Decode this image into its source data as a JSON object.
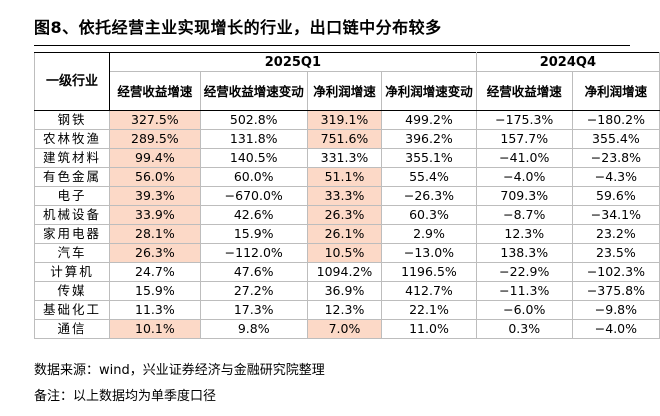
{
  "title": "图8、依托经营主业实现增长的行业，出口链中分布较多",
  "table": {
    "groups": [
      "2025Q1",
      "2024Q4"
    ],
    "row_header": "一级行业",
    "columns": [
      "经营收益增速",
      "经营收益增速变动",
      "净利润增速",
      "净利润增速变动",
      "经营收益增速",
      "净利润增速"
    ],
    "rows": [
      {
        "name": "钢铁",
        "values": [
          "327.5%",
          "502.8%",
          "319.1%",
          "499.2%",
          "−175.3%",
          "−180.2%"
        ],
        "highlight": [
          true,
          false,
          true,
          false,
          false,
          false
        ]
      },
      {
        "name": "农林牧渔",
        "values": [
          "289.5%",
          "131.8%",
          "751.6%",
          "396.2%",
          "157.7%",
          "355.4%"
        ],
        "highlight": [
          true,
          false,
          true,
          false,
          false,
          false
        ]
      },
      {
        "name": "建筑材料",
        "values": [
          "99.4%",
          "140.5%",
          "331.3%",
          "355.1%",
          "−41.0%",
          "−23.8%"
        ],
        "highlight": [
          true,
          false,
          false,
          false,
          false,
          false
        ]
      },
      {
        "name": "有色金属",
        "values": [
          "56.0%",
          "60.0%",
          "51.1%",
          "55.4%",
          "−4.0%",
          "−4.3%"
        ],
        "highlight": [
          true,
          false,
          true,
          false,
          false,
          false
        ]
      },
      {
        "name": "电子",
        "values": [
          "39.3%",
          "−670.0%",
          "33.3%",
          "−26.3%",
          "709.3%",
          "59.6%"
        ],
        "highlight": [
          true,
          false,
          true,
          false,
          false,
          false
        ]
      },
      {
        "name": "机械设备",
        "values": [
          "33.9%",
          "42.6%",
          "26.3%",
          "60.3%",
          "−8.7%",
          "−34.1%"
        ],
        "highlight": [
          true,
          false,
          true,
          false,
          false,
          false
        ]
      },
      {
        "name": "家用电器",
        "values": [
          "28.1%",
          "15.9%",
          "26.1%",
          "2.9%",
          "12.3%",
          "23.2%"
        ],
        "highlight": [
          true,
          false,
          true,
          false,
          false,
          false
        ]
      },
      {
        "name": "汽车",
        "values": [
          "26.3%",
          "−112.0%",
          "10.5%",
          "−13.0%",
          "138.3%",
          "23.5%"
        ],
        "highlight": [
          true,
          false,
          true,
          false,
          false,
          false
        ]
      },
      {
        "name": "计算机",
        "values": [
          "24.7%",
          "47.6%",
          "1094.2%",
          "1196.5%",
          "−22.9%",
          "−102.3%"
        ],
        "highlight": [
          false,
          false,
          false,
          false,
          false,
          false
        ]
      },
      {
        "name": "传媒",
        "values": [
          "15.9%",
          "27.2%",
          "36.9%",
          "412.7%",
          "−11.3%",
          "−375.8%"
        ],
        "highlight": [
          false,
          false,
          false,
          false,
          false,
          false
        ]
      },
      {
        "name": "基础化工",
        "values": [
          "11.3%",
          "17.3%",
          "12.3%",
          "22.1%",
          "−6.0%",
          "−9.8%"
        ],
        "highlight": [
          false,
          false,
          false,
          false,
          false,
          false
        ]
      },
      {
        "name": "通信",
        "values": [
          "10.1%",
          "9.8%",
          "7.0%",
          "11.0%",
          "0.3%",
          "−4.0%"
        ],
        "highlight": [
          true,
          false,
          true,
          false,
          false,
          false
        ]
      }
    ]
  },
  "footnotes": {
    "source": "数据来源：wind，兴业证券经济与金融研究院整理",
    "note": "备注：以上数据均为单季度口径"
  },
  "colors": {
    "highlight": "#fcd9c7",
    "rule": "#000000",
    "grid": "#bdbdbd"
  }
}
